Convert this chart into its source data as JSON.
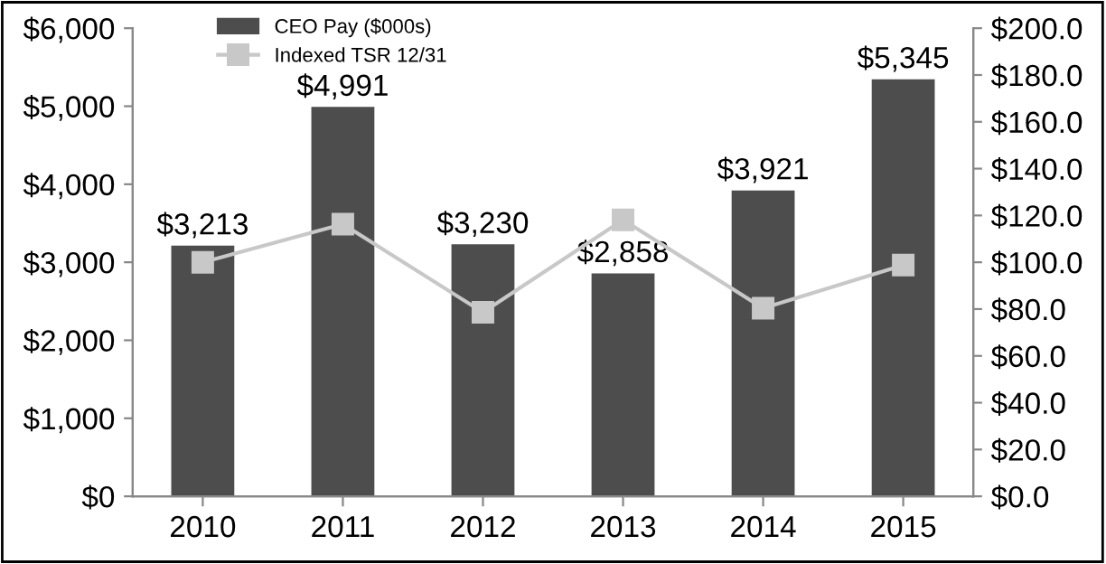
{
  "chart_data": {
    "type": "bar",
    "categories": [
      "2010",
      "2011",
      "2012",
      "2013",
      "2014",
      "2015"
    ],
    "series": [
      {
        "name": "CEO Pay ($000s)",
        "color": "#4d4d4d",
        "values": [
          3213,
          4991,
          3230,
          2858,
          3921,
          5345
        ],
        "value_labels": [
          "$3,213",
          "$4,991",
          "$3,230",
          "$2,858",
          "$3,921",
          "$5,345"
        ]
      },
      {
        "name": "Indexed TSR 12/31",
        "type": "line",
        "axis": "y2",
        "color": "#c8c8c8",
        "marker": "square",
        "values": [
          100.0,
          116.3,
          78.6,
          118.1,
          80.4,
          98.8
        ]
      }
    ],
    "ylim": [
      0,
      6000
    ],
    "yticks": [
      {
        "value": 0,
        "label": "$0"
      },
      {
        "value": 1000,
        "label": "$1,000"
      },
      {
        "value": 2000,
        "label": "$2,000"
      },
      {
        "value": 3000,
        "label": "$3,000"
      },
      {
        "value": 4000,
        "label": "$4,000"
      },
      {
        "value": 5000,
        "label": "$5,000"
      },
      {
        "value": 6000,
        "label": "$6,000"
      }
    ],
    "y2lim": [
      0,
      200
    ],
    "y2ticks": [
      {
        "value": 0,
        "label": "$0.0"
      },
      {
        "value": 20,
        "label": "$20.0"
      },
      {
        "value": 40,
        "label": "$40.0"
      },
      {
        "value": 60,
        "label": "$60.0"
      },
      {
        "value": 80,
        "label": "$80.0"
      },
      {
        "value": 100,
        "label": "$100.0"
      },
      {
        "value": 120,
        "label": "$120.0"
      },
      {
        "value": 140,
        "label": "$140.0"
      },
      {
        "value": 160,
        "label": "$160.0"
      },
      {
        "value": 180,
        "label": "$180.0"
      },
      {
        "value": 200,
        "label": "$200.0"
      }
    ],
    "grid": false,
    "legend": "top left"
  }
}
